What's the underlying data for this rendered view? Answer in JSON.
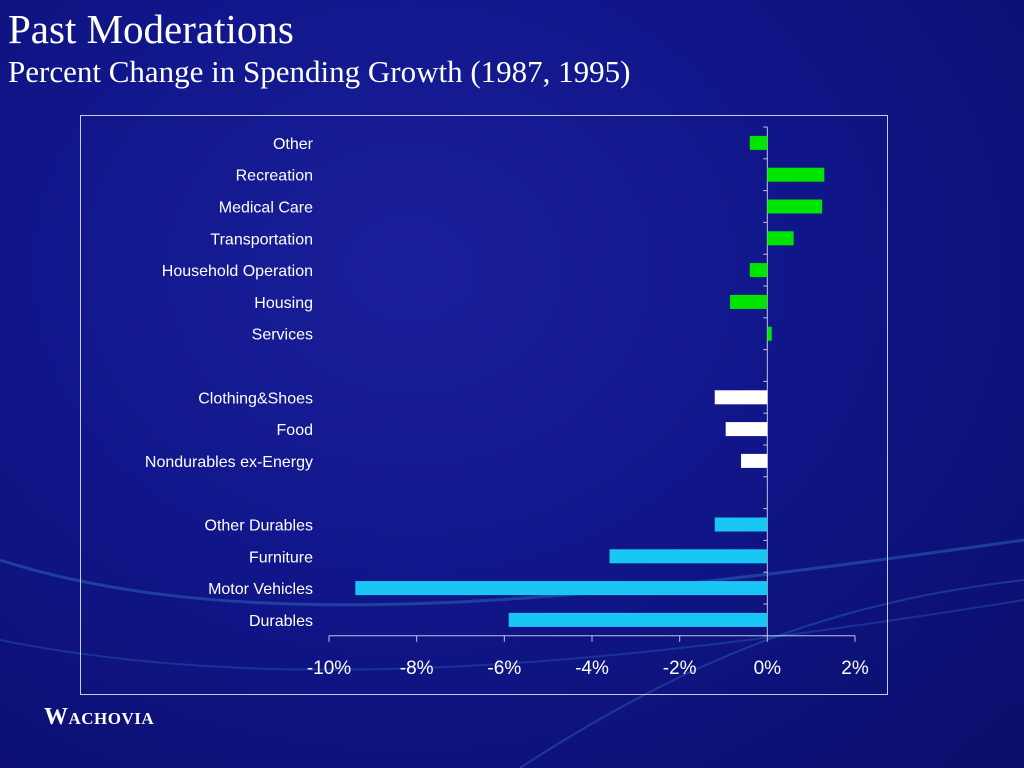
{
  "slide": {
    "title": "Past Moderations",
    "subtitle": "Percent Change in Spending Growth (1987, 1995)",
    "logo_text": "WACHOVIA"
  },
  "colors": {
    "services": "#00e600",
    "nondurables": "#ffffff",
    "durables": "#19c7f5",
    "background": "#10168a",
    "text": "#ffffff"
  },
  "chart_data": {
    "type": "bar",
    "orientation": "horizontal",
    "title": "",
    "xlabel": "",
    "ylabel": "",
    "xlim": [
      -10,
      2
    ],
    "x_ticks": [
      "-10%",
      "-8%",
      "-6%",
      "-4%",
      "-2%",
      "0%",
      "2%"
    ],
    "x_tick_values": [
      -10,
      -8,
      -6,
      -4,
      -2,
      0,
      2
    ],
    "grid": false,
    "legend": "none",
    "categories": [
      "Other",
      "Recreation",
      "Medical Care",
      "Transportation",
      "Household Operation",
      "Housing",
      "Services",
      "",
      "Clothing&Shoes",
      "Food",
      "Nondurables ex-Energy",
      "",
      "Other Durables",
      "Furniture",
      "Motor Vehicles",
      "Durables"
    ],
    "values": [
      -0.4,
      1.3,
      1.25,
      0.6,
      -0.4,
      -0.85,
      0.1,
      null,
      -1.2,
      -0.95,
      -0.6,
      null,
      -1.2,
      -3.6,
      -9.4,
      -5.9
    ],
    "groups": [
      "services",
      "services",
      "services",
      "services",
      "services",
      "services",
      "services",
      "",
      "nondurables",
      "nondurables",
      "nondurables",
      "",
      "durables",
      "durables",
      "durables",
      "durables"
    ]
  }
}
